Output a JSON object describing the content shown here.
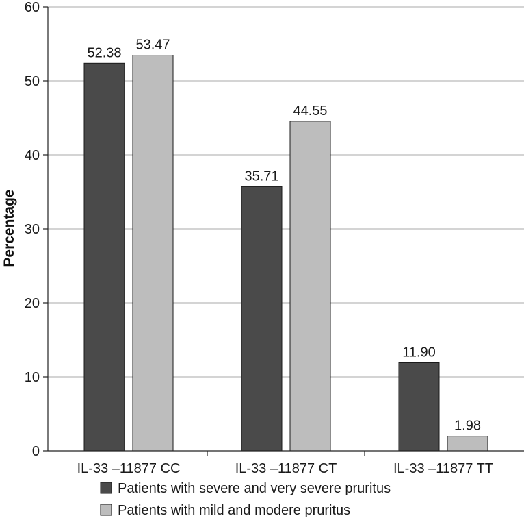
{
  "chart_data": {
    "type": "bar",
    "title": "",
    "xlabel": "",
    "ylabel": "Percentage",
    "ylim": [
      0,
      60
    ],
    "yticks": [
      0,
      10,
      20,
      30,
      40,
      50,
      60
    ],
    "grid": true,
    "legend_position": "bottom",
    "categories": [
      "IL-33 –11877 CC",
      "IL-33 –11877 CT",
      "IL-33 –11877 TT"
    ],
    "series": [
      {
        "name": "Patients with severe and very severe pruritus",
        "color": "#4a4a4a",
        "values": [
          52.38,
          35.71,
          11.9
        ],
        "labels": [
          "52.38",
          "35.71",
          "11.90"
        ]
      },
      {
        "name": "Patients with mild and modere pruritus",
        "color": "#bdbdbd",
        "values": [
          53.47,
          44.55,
          1.98
        ],
        "labels": [
          "53.47",
          "44.55",
          "1.98"
        ]
      }
    ]
  }
}
